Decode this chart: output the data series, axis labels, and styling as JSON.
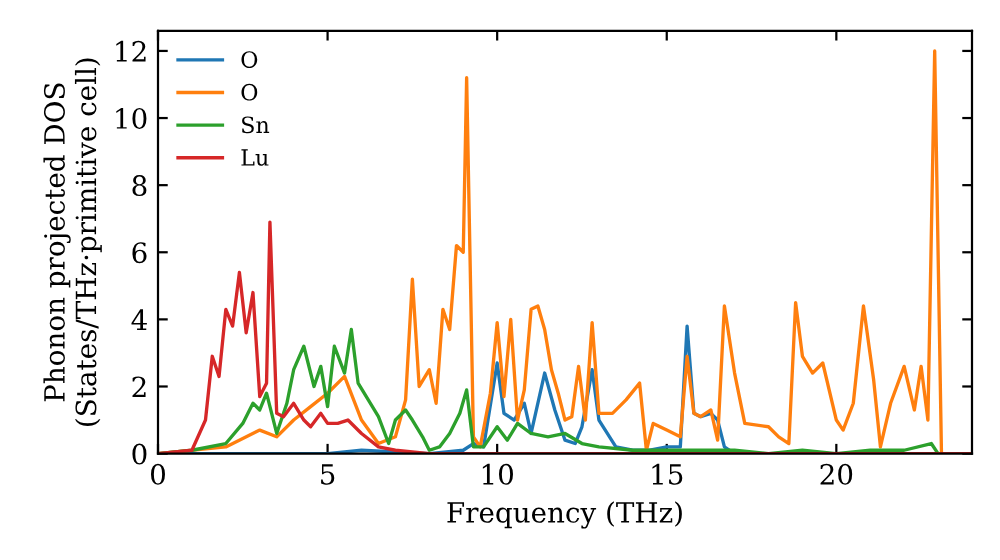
{
  "chart_data": {
    "type": "line",
    "xlabel": "Frequency (THz)",
    "ylabel": "Phonon projected DOS\n(States/THz·primitive cell)",
    "xlim": [
      0,
      24
    ],
    "ylim": [
      0,
      12.6
    ],
    "xticks": [
      0,
      5,
      10,
      15,
      20
    ],
    "yticks": [
      0,
      2,
      4,
      6,
      8,
      10,
      12
    ],
    "grid": false,
    "legend": "top left",
    "marker": "none",
    "line_style": "solid",
    "series": [
      {
        "name": "O",
        "color": "#1f77b4",
        "x": [
          0,
          5,
          6,
          8,
          9,
          9.3,
          9.6,
          10,
          10.2,
          10.5,
          10.8,
          11,
          11.4,
          11.7,
          12,
          12.3,
          12.5,
          12.8,
          13,
          13.5,
          14,
          14.5,
          15,
          15.4,
          15.6,
          15.8,
          16,
          16.3,
          16.5,
          16.7,
          17
        ],
        "values": [
          0,
          0,
          0.1,
          0,
          0.1,
          0.3,
          0.2,
          2.7,
          1.2,
          1.0,
          1.5,
          0.6,
          2.4,
          1.3,
          0.4,
          0.3,
          0.8,
          2.5,
          1.0,
          0.2,
          0.1,
          0.1,
          0.2,
          0.2,
          3.8,
          1.2,
          1.1,
          1.2,
          1.0,
          0.2,
          0
        ]
      },
      {
        "name": "O",
        "color": "#ff7f0e",
        "x": [
          0,
          2,
          3,
          3.5,
          4,
          4.5,
          5,
          5.5,
          6,
          6.5,
          7,
          7.3,
          7.5,
          7.7,
          8,
          8.2,
          8.4,
          8.6,
          8.8,
          9,
          9.1,
          9.3,
          9.5,
          9.8,
          10,
          10.2,
          10.4,
          10.6,
          10.8,
          11,
          11.2,
          11.4,
          11.6,
          11.8,
          12,
          12.2,
          12.4,
          12.6,
          12.8,
          13,
          13.4,
          13.8,
          14.2,
          14.4,
          14.6,
          15,
          15.4,
          15.6,
          15.8,
          16,
          16.3,
          16.5,
          16.7,
          17,
          17.3,
          18,
          18.3,
          18.6,
          18.8,
          19,
          19.3,
          19.6,
          20,
          20.2,
          20.5,
          20.8,
          21.1,
          21.3,
          21.6,
          22,
          22.3,
          22.5,
          22.7,
          22.9,
          23.1,
          24
        ],
        "values": [
          0,
          0.2,
          0.7,
          0.5,
          1.0,
          1.4,
          1.8,
          2.3,
          1.0,
          0.3,
          0.5,
          1.6,
          5.2,
          2.0,
          2.5,
          1.5,
          4.3,
          3.7,
          6.2,
          6.0,
          11.2,
          0.5,
          0.2,
          1.8,
          3.9,
          1.7,
          4.0,
          1.0,
          1.9,
          4.3,
          4.4,
          3.7,
          2.5,
          1.8,
          1.0,
          1.1,
          2.6,
          1.0,
          3.9,
          1.2,
          1.2,
          1.6,
          2.1,
          0.1,
          0.9,
          0.7,
          0.5,
          2.9,
          1.2,
          1.1,
          1.3,
          0.4,
          4.4,
          2.4,
          0.9,
          0.8,
          0.5,
          0.3,
          4.5,
          2.9,
          2.4,
          2.7,
          1.0,
          0.7,
          1.5,
          4.4,
          2.2,
          0.2,
          1.5,
          2.6,
          1.3,
          2.6,
          1.0,
          12.0,
          0,
          0
        ]
      },
      {
        "name": "Sn",
        "color": "#2ca02c",
        "x": [
          0,
          1,
          2,
          2.5,
          2.8,
          3,
          3.2,
          3.5,
          3.8,
          4,
          4.3,
          4.6,
          4.8,
          5,
          5.2,
          5.5,
          5.7,
          5.9,
          6.2,
          6.5,
          6.8,
          7,
          7.3,
          7.5,
          7.8,
          8,
          8.3,
          8.6,
          8.9,
          9.1,
          9.3,
          9.6,
          10,
          10.3,
          10.6,
          11,
          11.5,
          12,
          12.5,
          13,
          14,
          15,
          16,
          17,
          18,
          19,
          20,
          21,
          22,
          22.8,
          23,
          24
        ],
        "values": [
          0,
          0.1,
          0.3,
          0.9,
          1.5,
          1.3,
          1.8,
          0.6,
          1.5,
          2.5,
          3.2,
          2.0,
          2.6,
          1.4,
          3.2,
          2.4,
          3.7,
          2.1,
          1.6,
          1.1,
          0.3,
          1.0,
          1.3,
          1.0,
          0.5,
          0.1,
          0.2,
          0.6,
          1.2,
          1.9,
          0.2,
          0.2,
          0.8,
          0.4,
          0.9,
          0.6,
          0.5,
          0.6,
          0.3,
          0.2,
          0.1,
          0.1,
          0.1,
          0.1,
          0,
          0.1,
          0,
          0.1,
          0.1,
          0.3,
          0,
          0
        ]
      },
      {
        "name": "Lu",
        "color": "#d62728",
        "x": [
          0,
          1,
          1.4,
          1.6,
          1.8,
          2,
          2.2,
          2.4,
          2.6,
          2.8,
          3,
          3.2,
          3.3,
          3.5,
          3.7,
          4,
          4.3,
          4.5,
          4.8,
          5,
          5.3,
          5.6,
          6,
          6.5,
          7,
          8,
          24
        ],
        "values": [
          0,
          0.1,
          1.0,
          2.9,
          2.3,
          4.3,
          3.8,
          5.4,
          3.6,
          4.8,
          1.7,
          2.1,
          6.9,
          1.2,
          1.1,
          1.5,
          1.0,
          0.8,
          1.2,
          0.9,
          0.9,
          1.0,
          0.6,
          0.2,
          0.1,
          0,
          0
        ]
      }
    ]
  }
}
